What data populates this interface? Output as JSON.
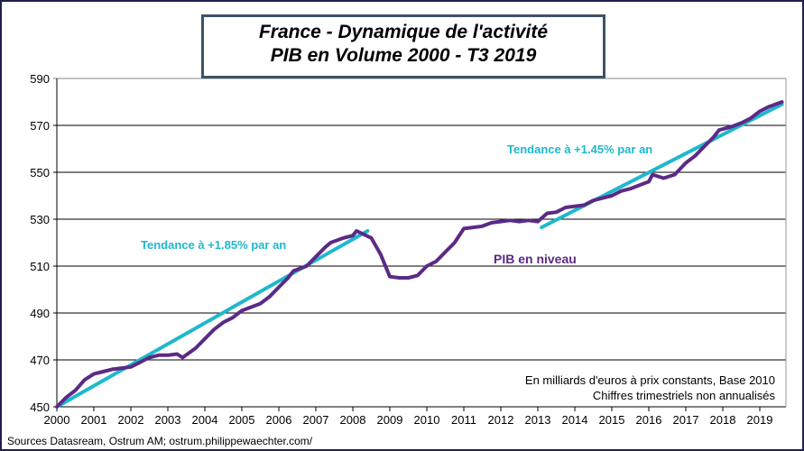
{
  "chart_data": {
    "type": "line",
    "title": [
      "France - Dynamique de l'activité",
      "PIB en Volume 2000 - T3 2019"
    ],
    "xlabel": "",
    "ylabel": "",
    "xlim": [
      2000,
      2019.75
    ],
    "ylim": [
      450,
      590
    ],
    "yticks": [
      450,
      470,
      490,
      510,
      530,
      550,
      570,
      590
    ],
    "xticks": [
      2000,
      2001,
      2002,
      2003,
      2004,
      2005,
      2006,
      2007,
      2008,
      2009,
      2010,
      2011,
      2012,
      2013,
      2014,
      2015,
      2016,
      2017,
      2018,
      2019
    ],
    "grid": "horizontal",
    "series": [
      {
        "name": "PIB en niveau",
        "color": "#5b2a86",
        "x": [
          2000,
          2000.25,
          2000.5,
          2000.75,
          2001,
          2001.25,
          2001.5,
          2001.75,
          2002,
          2002.25,
          2002.5,
          2002.75,
          2003,
          2003.25,
          2003.4,
          2003.75,
          2004,
          2004.25,
          2004.5,
          2004.75,
          2005,
          2005.25,
          2005.5,
          2005.75,
          2006,
          2006.25,
          2006.4,
          2006.75,
          2007,
          2007.25,
          2007.4,
          2007.75,
          2008,
          2008.1,
          2008.3,
          2008.5,
          2008.75,
          2009,
          2009.25,
          2009.5,
          2009.75,
          2010,
          2010.25,
          2010.5,
          2010.75,
          2011,
          2011.25,
          2011.5,
          2011.75,
          2012,
          2012.25,
          2012.5,
          2012.75,
          2013,
          2013.25,
          2013.5,
          2013.75,
          2014,
          2014.25,
          2014.5,
          2014.75,
          2015,
          2015.25,
          2015.5,
          2015.75,
          2016,
          2016.1,
          2016.4,
          2016.7,
          2017,
          2017.25,
          2017.5,
          2017.75,
          2017.9,
          2018.25,
          2018.5,
          2018.75,
          2019,
          2019.25,
          2019.6
        ],
        "y": [
          450,
          454,
          457,
          461.5,
          464,
          465,
          466,
          466.5,
          467,
          469,
          471,
          472,
          472,
          472.5,
          471,
          475,
          479,
          483,
          486,
          488,
          491,
          492.5,
          494,
          497,
          501,
          505,
          508,
          510,
          514,
          518,
          520,
          522,
          523,
          525,
          523.5,
          522,
          515,
          505.5,
          505,
          505,
          506,
          510,
          512,
          516,
          520,
          526,
          526.5,
          527,
          528.5,
          529,
          529.5,
          529,
          529.5,
          529,
          532.5,
          533,
          535,
          535.5,
          536,
          538,
          539,
          540,
          542,
          543,
          544.5,
          546,
          549,
          547.5,
          549,
          554,
          557,
          561,
          565,
          568,
          569.5,
          571,
          573,
          576,
          578,
          580
        ]
      },
      {
        "name": "Tendance à +1.85% par an",
        "color": "#1fb8cc",
        "x": [
          2000,
          2008.4
        ],
        "y": [
          450,
          525
        ]
      },
      {
        "name": "Tendance à +1.45% par an",
        "color": "#1fb8cc",
        "x": [
          2013.1,
          2019.6
        ],
        "y": [
          526.5,
          579
        ]
      }
    ],
    "annotations": {
      "trend1": "Tendance à +1.85% par an",
      "trend2": "Tendance à +1.45% par an",
      "level": "PIB en niveau",
      "units_line1": "En milliards  d'euros à prix constants, Base 2010",
      "units_line2": "Chiffres trimestriels non annualisés"
    }
  },
  "source": "Sources Datasream, Ostrum AM;  ostrum.philippewaechter.com/"
}
